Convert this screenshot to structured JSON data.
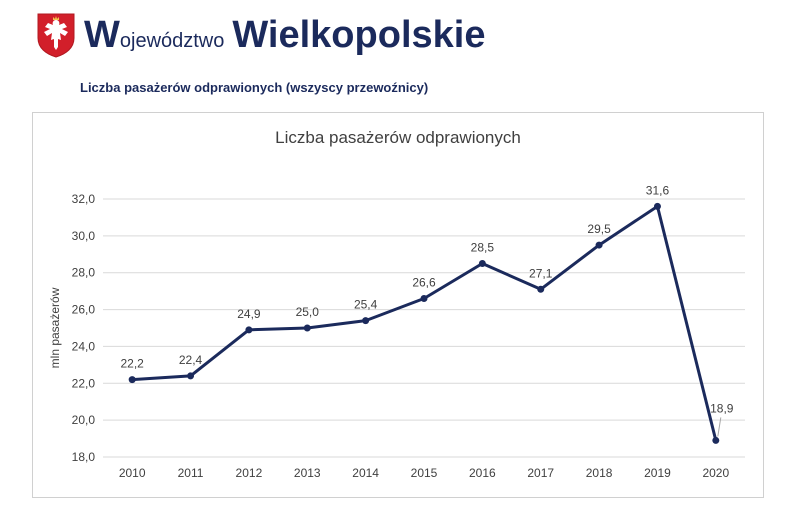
{
  "header": {
    "title_initial": "W",
    "title_rest": "ojewództwo",
    "title_region": "Wielkopolskie",
    "subtitle": "Liczba pasażerów odprawionych (wszyscy przewoźnicy)"
  },
  "colors": {
    "brand": "#1b2a5c",
    "series": "#1b2a5c",
    "grid": "#d9d9d9",
    "crest_red": "#d21f2a"
  },
  "chart_data": {
    "type": "line",
    "title": "Liczba pasażerów odprawionych",
    "xlabel": "",
    "ylabel": "mln pasażerów",
    "x": [
      "2010",
      "2011",
      "2012",
      "2013",
      "2014",
      "2015",
      "2016",
      "2017",
      "2018",
      "2019",
      "2020"
    ],
    "series": [
      {
        "values": [
          22.2,
          22.4,
          24.9,
          25.0,
          25.4,
          26.6,
          28.5,
          27.1,
          29.5,
          31.6,
          18.9
        ],
        "labels": [
          "22,2",
          "22,4",
          "24,9",
          "25,0",
          "25,4",
          "26,6",
          "28,5",
          "27,1",
          "29,5",
          "31,6",
          "18,9"
        ]
      }
    ],
    "ylim": [
      18,
      32
    ],
    "yticks": [
      18,
      20,
      22,
      24,
      26,
      28,
      30,
      32
    ],
    "ytick_labels": [
      "18,0",
      "20,0",
      "22,0",
      "24,0",
      "26,0",
      "28,0",
      "30,0",
      "32,0"
    ],
    "grid": true,
    "legend": "none"
  }
}
